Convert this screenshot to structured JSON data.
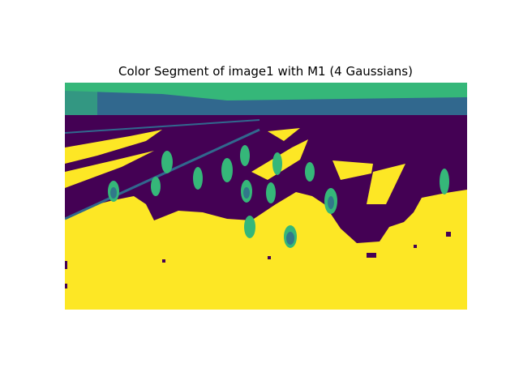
{
  "figure": {
    "title": "Color Segment of image1 with M1 (4 Gaussians)"
  },
  "segmentation": {
    "components": 4,
    "palette": {
      "class_0": "#440154",
      "class_1": "#31688e",
      "class_2": "#35b779",
      "class_3": "#fde725"
    }
  }
}
